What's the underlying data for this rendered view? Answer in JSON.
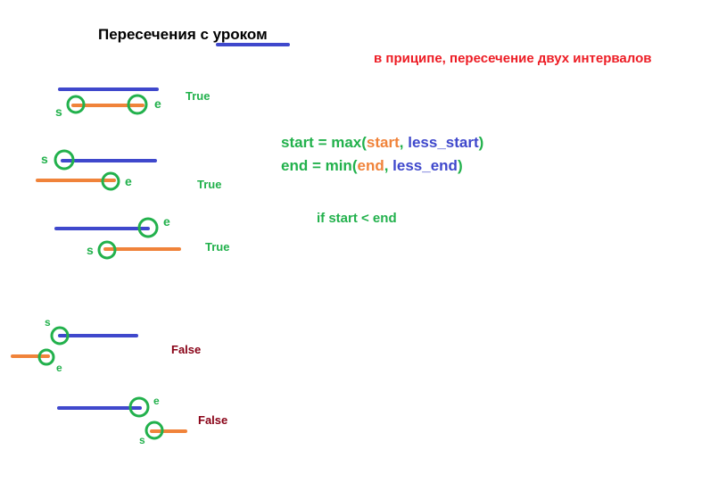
{
  "title": "Пересечения с уроком",
  "note": "в приципе, пересечение двух интервалов",
  "colors": {
    "blue": "#3f48cc",
    "orange": "#f0833a",
    "green": "#22b14c",
    "red": "#ed1c24",
    "dark_red": "#880015",
    "black": "#000000"
  },
  "formulas": {
    "line1": {
      "prefix": "start = max(",
      "a": "start",
      "sep": ", ",
      "b": "less_start",
      "suffix": ")"
    },
    "line2": {
      "prefix": "end = min(",
      "a": "end",
      "sep": ", ",
      "b": "less_end",
      "suffix": ")"
    },
    "condition": "if start < end"
  },
  "examples": [
    {
      "result": "True",
      "start_marker": "s",
      "end_marker": "e"
    },
    {
      "result": "True",
      "start_marker": "s",
      "end_marker": "e"
    },
    {
      "result": "True",
      "start_marker": "s",
      "end_marker": "e"
    },
    {
      "result": "False",
      "start_marker": "s",
      "end_marker": "e"
    },
    {
      "result": "False",
      "start_marker": "s",
      "end_marker": "e"
    }
  ]
}
